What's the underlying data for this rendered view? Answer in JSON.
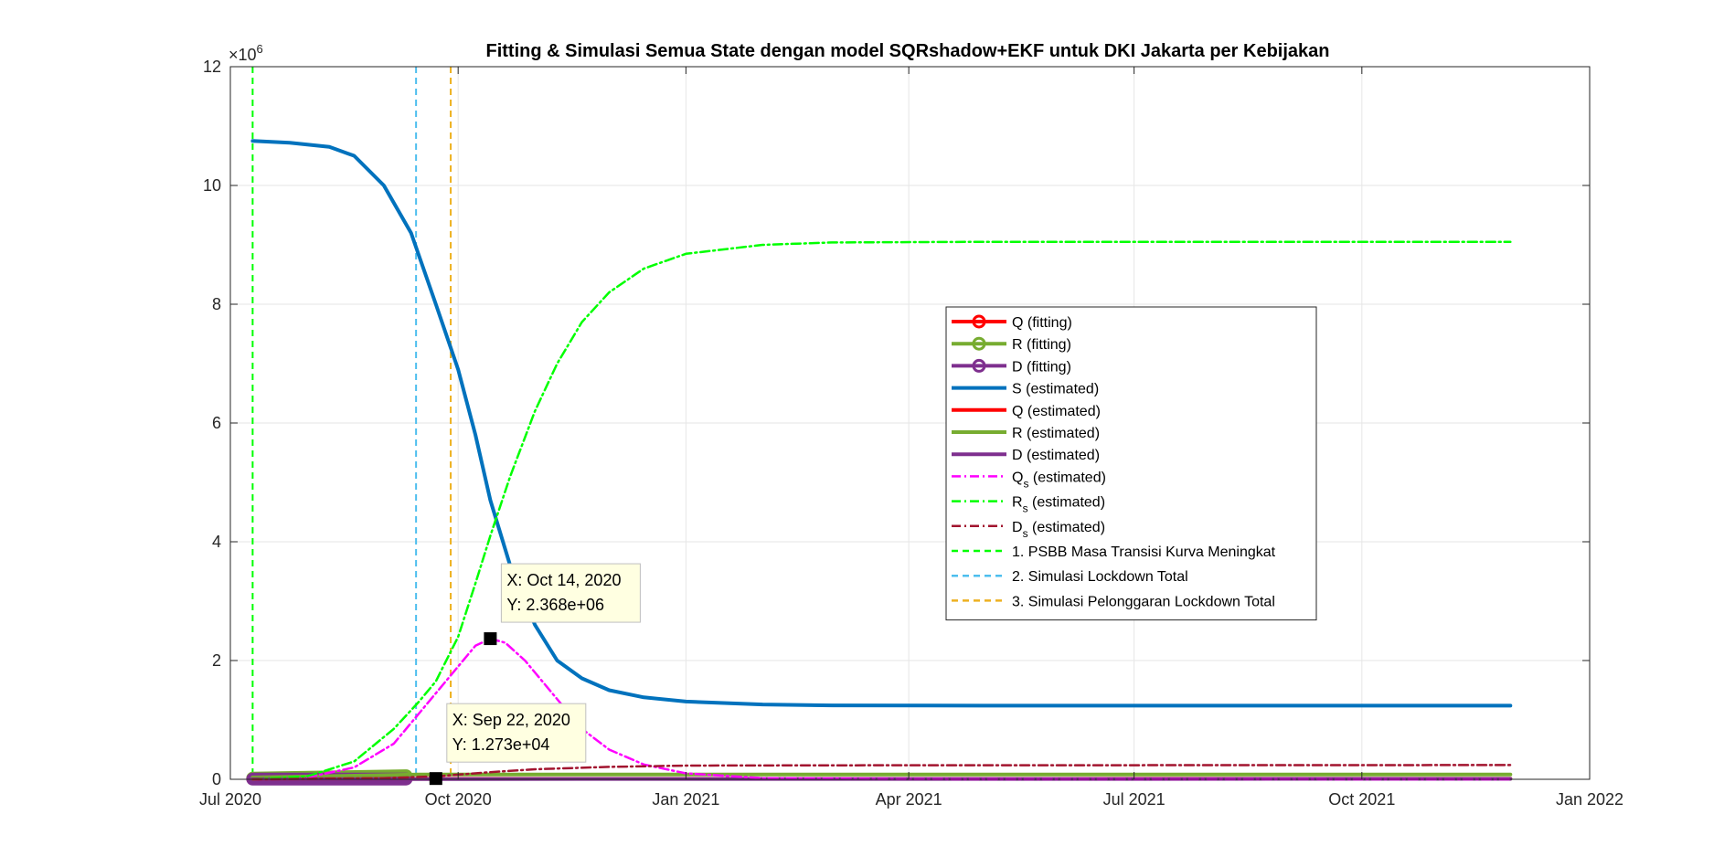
{
  "chart_data": {
    "type": "line",
    "title": "Fitting & Simulasi Semua State dengan model SQRshadow+EKF untuk DKI Jakarta per Kebijakan",
    "xlabel": "",
    "ylabel": "",
    "y_exponent_label": "×10",
    "y_exponent_power": "6",
    "xlim": [
      "2020-07-01",
      "2022-01-01"
    ],
    "ylim": [
      0,
      12
    ],
    "y_ticks": [
      0,
      2,
      4,
      6,
      8,
      10,
      12
    ],
    "x_ticks": [
      {
        "date": "2020-07-01",
        "label": "Jul 2020"
      },
      {
        "date": "2020-10-01",
        "label": "Oct 2020"
      },
      {
        "date": "2021-01-01",
        "label": "Jan 2021"
      },
      {
        "date": "2021-04-01",
        "label": "Apr 2021"
      },
      {
        "date": "2021-07-01",
        "label": "Jul 2021"
      },
      {
        "date": "2021-10-01",
        "label": "Oct 2021"
      },
      {
        "date": "2022-01-01",
        "label": "Jan 2022"
      }
    ],
    "grid": true,
    "legend_position": "center-right",
    "series": [
      {
        "name": "Q (fitting)",
        "color": "#ff0000",
        "style": "solid-marker",
        "points": [
          [
            "2020-07-10",
            0.01
          ],
          [
            "2020-08-10",
            0.012
          ],
          [
            "2020-09-10",
            0.015
          ]
        ]
      },
      {
        "name": "R (fitting)",
        "color": "#77ac30",
        "style": "solid-marker",
        "points": [
          [
            "2020-07-10",
            0.02
          ],
          [
            "2020-08-10",
            0.04
          ],
          [
            "2020-09-10",
            0.06
          ]
        ]
      },
      {
        "name": "D (fitting)",
        "color": "#7e2f8e",
        "style": "solid-marker",
        "points": [
          [
            "2020-07-10",
            0.003
          ],
          [
            "2020-08-10",
            0.004
          ],
          [
            "2020-09-10",
            0.005
          ]
        ]
      },
      {
        "name": "S (estimated)",
        "color": "#0072bd",
        "style": "solid",
        "points": [
          [
            "2020-07-10",
            10.75
          ],
          [
            "2020-07-25",
            10.72
          ],
          [
            "2020-08-10",
            10.65
          ],
          [
            "2020-08-20",
            10.5
          ],
          [
            "2020-09-01",
            10.0
          ],
          [
            "2020-09-12",
            9.2
          ],
          [
            "2020-09-22",
            8.0
          ],
          [
            "2020-10-01",
            6.9
          ],
          [
            "2020-10-08",
            5.8
          ],
          [
            "2020-10-14",
            4.7
          ],
          [
            "2020-10-22",
            3.6
          ],
          [
            "2020-11-01",
            2.6
          ],
          [
            "2020-11-10",
            2.0
          ],
          [
            "2020-11-20",
            1.7
          ],
          [
            "2020-12-01",
            1.5
          ],
          [
            "2020-12-15",
            1.38
          ],
          [
            "2021-01-01",
            1.31
          ],
          [
            "2021-02-01",
            1.26
          ],
          [
            "2021-03-01",
            1.245
          ],
          [
            "2021-05-01",
            1.24
          ],
          [
            "2021-08-01",
            1.24
          ],
          [
            "2021-11-30",
            1.24
          ]
        ]
      },
      {
        "name": "Q (estimated)",
        "color": "#ff0000",
        "style": "solid",
        "points": [
          [
            "2020-07-10",
            0.005
          ],
          [
            "2020-10-01",
            0.008
          ],
          [
            "2021-11-30",
            0.01
          ]
        ]
      },
      {
        "name": "R (estimated)",
        "color": "#77ac30",
        "style": "solid",
        "points": [
          [
            "2020-07-10",
            0.03
          ],
          [
            "2020-09-15",
            0.08
          ],
          [
            "2021-11-30",
            0.08
          ]
        ]
      },
      {
        "name": "D (estimated)",
        "color": "#7e2f8e",
        "style": "solid",
        "points": [
          [
            "2020-07-10",
            0.003
          ],
          [
            "2020-09-15",
            0.005
          ],
          [
            "2021-11-30",
            0.008
          ]
        ]
      },
      {
        "name": "Q_s (estimated)",
        "color": "#ff00ff",
        "style": "dashdot",
        "points": [
          [
            "2020-07-10",
            0.0
          ],
          [
            "2020-08-01",
            0.03
          ],
          [
            "2020-08-20",
            0.2
          ],
          [
            "2020-09-05",
            0.6
          ],
          [
            "2020-09-15",
            1.1
          ],
          [
            "2020-09-22",
            1.45
          ],
          [
            "2020-10-01",
            1.9
          ],
          [
            "2020-10-08",
            2.25
          ],
          [
            "2020-10-14",
            2.368
          ],
          [
            "2020-10-20",
            2.3
          ],
          [
            "2020-10-28",
            2.0
          ],
          [
            "2020-11-08",
            1.45
          ],
          [
            "2020-11-20",
            0.85
          ],
          [
            "2020-12-01",
            0.5
          ],
          [
            "2020-12-15",
            0.25
          ],
          [
            "2021-01-01",
            0.1
          ],
          [
            "2021-02-01",
            0.02
          ],
          [
            "2021-04-01",
            0.003
          ],
          [
            "2021-11-30",
            0.0
          ]
        ]
      },
      {
        "name": "R_s (estimated)",
        "color": "#00ff00",
        "style": "dashdot",
        "points": [
          [
            "2020-07-10",
            0.0
          ],
          [
            "2020-08-01",
            0.05
          ],
          [
            "2020-08-20",
            0.3
          ],
          [
            "2020-09-05",
            0.85
          ],
          [
            "2020-09-15",
            1.3
          ],
          [
            "2020-09-22",
            1.65
          ],
          [
            "2020-10-01",
            2.4
          ],
          [
            "2020-10-08",
            3.3
          ],
          [
            "2020-10-14",
            4.1
          ],
          [
            "2020-10-22",
            5.1
          ],
          [
            "2020-11-01",
            6.2
          ],
          [
            "2020-11-10",
            7.0
          ],
          [
            "2020-11-20",
            7.7
          ],
          [
            "2020-12-01",
            8.2
          ],
          [
            "2020-12-15",
            8.6
          ],
          [
            "2021-01-01",
            8.85
          ],
          [
            "2021-02-01",
            9.0
          ],
          [
            "2021-03-01",
            9.04
          ],
          [
            "2021-05-01",
            9.05
          ],
          [
            "2021-11-30",
            9.05
          ]
        ]
      },
      {
        "name": "D_s (estimated)",
        "color": "#a2142f",
        "style": "dashdot",
        "points": [
          [
            "2020-07-10",
            0.0
          ],
          [
            "2020-09-01",
            0.02
          ],
          [
            "2020-09-22",
            0.05
          ],
          [
            "2020-10-14",
            0.12
          ],
          [
            "2020-11-01",
            0.17
          ],
          [
            "2020-12-01",
            0.21
          ],
          [
            "2021-01-01",
            0.23
          ],
          [
            "2021-03-01",
            0.235
          ],
          [
            "2021-11-30",
            0.24
          ]
        ]
      }
    ],
    "vertical_lines": [
      {
        "name": "1. PSBB Masa Transisi Kurva Meningkat",
        "color": "#00ff00",
        "date": "2020-07-10"
      },
      {
        "name": "2. Simulasi Lockdown Total",
        "color": "#4dbeee",
        "date": "2020-09-14"
      },
      {
        "name": "3. Simulasi Pelonggaran Lockdown Total",
        "color": "#edb120",
        "date": "2020-09-28"
      }
    ],
    "legend": [
      {
        "label": "Q (fitting)",
        "color": "#ff0000",
        "style": "marker"
      },
      {
        "label": "R (fitting)",
        "color": "#77ac30",
        "style": "marker"
      },
      {
        "label": "D (fitting)",
        "color": "#7e2f8e",
        "style": "marker"
      },
      {
        "label": "S (estimated)",
        "color": "#0072bd",
        "style": "solid"
      },
      {
        "label": "Q (estimated)",
        "color": "#ff0000",
        "style": "solid"
      },
      {
        "label": "R (estimated)",
        "color": "#77ac30",
        "style": "solid"
      },
      {
        "label": "D (estimated)",
        "color": "#7e2f8e",
        "style": "solid"
      },
      {
        "label": "Q",
        "sub": "s",
        "suffix": " (estimated)",
        "color": "#ff00ff",
        "style": "dashdot"
      },
      {
        "label": "R",
        "sub": "s",
        "suffix": " (estimated)",
        "color": "#00ff00",
        "style": "dashdot"
      },
      {
        "label": "D",
        "sub": "s",
        "suffix": " (estimated)",
        "color": "#a2142f",
        "style": "dashdot"
      },
      {
        "label": "1. PSBB Masa Transisi Kurva Meningkat",
        "color": "#00ff00",
        "style": "dashed"
      },
      {
        "label": "2. Simulasi Lockdown Total",
        "color": "#4dbeee",
        "style": "dashed"
      },
      {
        "label": "3. Simulasi Pelonggaran Lockdown Total",
        "color": "#edb120",
        "style": "dashed"
      }
    ],
    "datatips": [
      {
        "date": "2020-10-14",
        "value": 2.368,
        "x_text": "X: Oct 14, 2020",
        "y_text": "Y: 2.368e+06"
      },
      {
        "date": "2020-09-22",
        "value": 0.01273,
        "x_text": "X: Sep 22, 2020",
        "y_text": "Y: 1.273e+04"
      }
    ]
  }
}
